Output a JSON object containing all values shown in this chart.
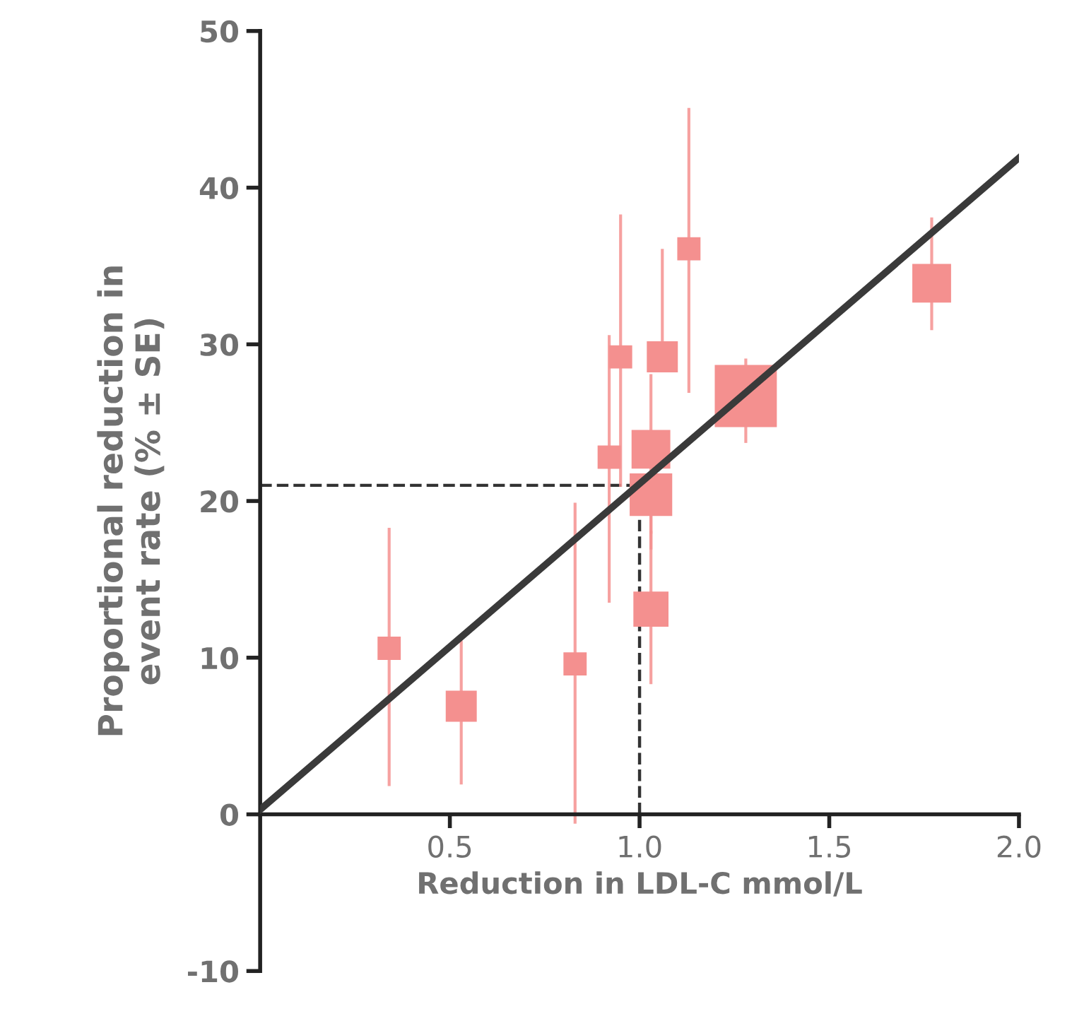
{
  "chart_data": {
    "type": "bubble",
    "xlabel": "Reduction in LDL-C mmol/L",
    "ylabel": "Proportional reduction in\nevent rate (% ± SE)",
    "xlim": [
      0,
      2.0
    ],
    "ylim": [
      -10,
      50
    ],
    "xticks": [
      {
        "value": 0.5,
        "label": "0.5"
      },
      {
        "value": 1.0,
        "label": "1.0"
      },
      {
        "value": 1.5,
        "label": "1.5"
      },
      {
        "value": 2.0,
        "label": "2.0"
      }
    ],
    "yticks": [
      -10,
      0,
      10,
      20,
      30,
      40,
      50
    ],
    "grid": false,
    "legend": false,
    "marker": "square",
    "series": [
      {
        "color": "#f4908f",
        "x": [
          0.34,
          0.53,
          0.83,
          0.92,
          0.95,
          1.03,
          1.03,
          1.03,
          1.06,
          1.13,
          1.28,
          1.77
        ],
        "values": [
          10.6,
          6.9,
          9.6,
          22.8,
          29.2,
          20.4,
          23.3,
          13.1,
          29.2,
          36.1,
          26.7,
          33.9
        ],
        "sizes": [
          0.14,
          0.25,
          0.14,
          0.14,
          0.14,
          0.47,
          0.39,
          0.32,
          0.25,
          0.14,
          1,
          0.39
        ],
        "errors": [
          [
            1.9,
            18.2
          ],
          [
            2,
            11
          ],
          [
            -0.5,
            19.8
          ],
          [
            13.6,
            30.5
          ],
          [
            21,
            38.2
          ],
          [
            18,
            20.4
          ],
          [
            17,
            28
          ],
          [
            8.4,
            18
          ],
          [
            29.2,
            36
          ],
          [
            27,
            45
          ],
          [
            23.8,
            29
          ],
          [
            31,
            38
          ]
        ]
      },
      {
        "type": "line",
        "color": "#3a3a3a",
        "x": [
          0,
          2.0
        ],
        "values": [
          0.3,
          41.9
        ],
        "marker": "none",
        "line_style": "solid"
      }
    ],
    "ref_lines": [
      {
        "axis": "y",
        "value": 21,
        "color": "#333333",
        "line_style": "dashed"
      },
      {
        "axis": "x",
        "value": 1.0,
        "color": "#333333",
        "line_style": "dashed"
      }
    ]
  }
}
